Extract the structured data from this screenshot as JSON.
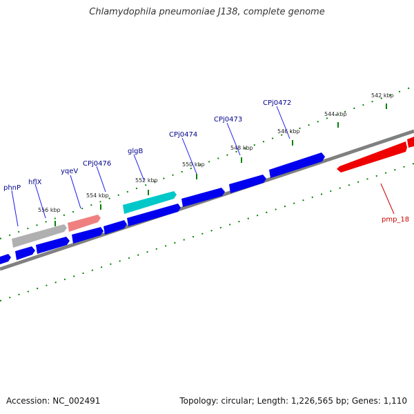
{
  "title": "Chlamydophila pneumoniae J138, complete genome",
  "footer": {
    "accession": "Accession: NC_002491",
    "summary": "Topology: circular; Length: 1,226,565 bp; Genes: 1,110"
  },
  "colors": {
    "backbone": "#808080",
    "forward_gene": "#0000ee",
    "label_forward": "#00008b",
    "label_reverse": "#cc0000",
    "reverse_gene": "#ee0000",
    "salmon_gene": "#f08080",
    "grey_gene": "#b0b0b0",
    "cyan_gene": "#00c8c8",
    "ticks": "#008000"
  },
  "genome": {
    "scale_labels": [
      "542 kbp",
      "544 kbp",
      "546 kbp",
      "548 kbp",
      "550 kbp",
      "552 kbp",
      "554 kbp",
      "556 kbp"
    ],
    "gene_labels": [
      "phnP",
      "hflX",
      "yqeV",
      "CPj0476",
      "glgB",
      "CPj0474",
      "CPj0473",
      "CPj0472",
      "pmp_18"
    ]
  }
}
